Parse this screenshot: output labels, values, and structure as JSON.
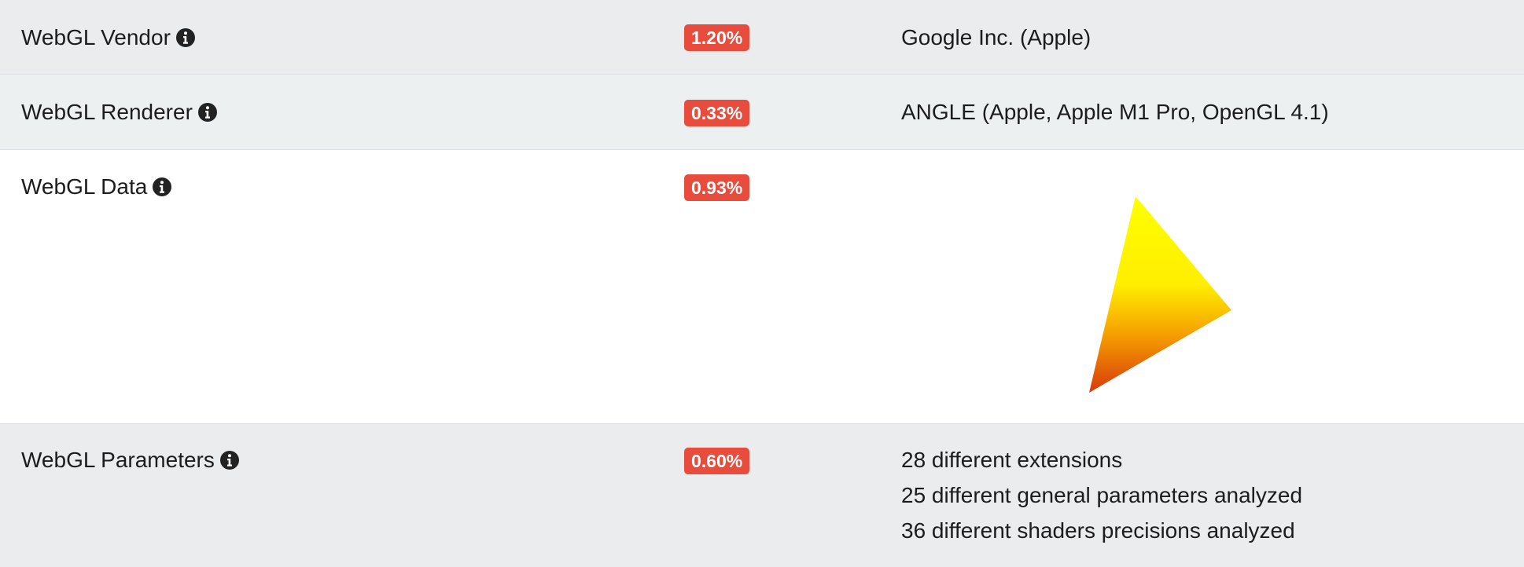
{
  "rows": {
    "vendor": {
      "label": "WebGL Vendor",
      "percent": "1.20%",
      "value": "Google Inc. (Apple)"
    },
    "renderer": {
      "label": "WebGL Renderer",
      "percent": "0.33%",
      "value": "ANGLE (Apple, Apple M1 Pro, OpenGL 4.1)"
    },
    "data": {
      "label": "WebGL Data",
      "percent": "0.93%"
    },
    "parameters": {
      "label": "WebGL Parameters",
      "percent": "0.60%",
      "lines": [
        "28 different extensions",
        "25 different general parameters analyzed",
        "36 different shaders precisions analyzed"
      ]
    }
  },
  "icons": {
    "info": "info-circle-icon"
  },
  "colors": {
    "badge": "#e74c3c",
    "row_shaded": "#ebeced",
    "triangle_top": "#ffff00",
    "triangle_bottom": "#e0400a"
  }
}
